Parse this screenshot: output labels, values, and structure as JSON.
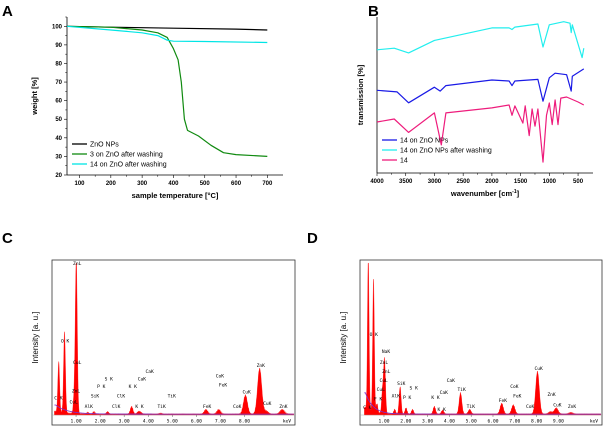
{
  "chart_data": [
    {
      "panel": "A",
      "type": "line",
      "xlabel": "sample temperature [°C]",
      "ylabel": "weight [%]",
      "xlim": [
        60,
        750
      ],
      "ylim": [
        20,
        105
      ],
      "xticks": [
        100,
        200,
        300,
        400,
        500,
        600,
        700
      ],
      "yticks": [
        20,
        30,
        40,
        50,
        60,
        70,
        80,
        90,
        100
      ],
      "legend": "bottom-left",
      "series": [
        {
          "name": "ZnO NPs",
          "color": "#000000",
          "x": [
            60,
            200,
            400,
            600,
            700
          ],
          "y": [
            100,
            99.5,
            99,
            98.5,
            98
          ]
        },
        {
          "name": "3 on ZnO after washing",
          "color": "#108a10",
          "x": [
            60,
            200,
            300,
            350,
            380,
            400,
            415,
            425,
            435,
            445,
            480,
            520,
            560,
            600,
            700
          ],
          "y": [
            100,
            99.5,
            98,
            96.5,
            94,
            88,
            82,
            70,
            50,
            44,
            41,
            36,
            32,
            31,
            30
          ]
        },
        {
          "name": "14 on ZnO after washing",
          "color": "#00e5e5",
          "x": [
            60,
            200,
            300,
            350,
            380,
            400,
            500,
            700
          ],
          "y": [
            100,
            98,
            96.5,
            95,
            92.5,
            92,
            91.8,
            91.3
          ]
        }
      ]
    },
    {
      "panel": "B",
      "type": "line",
      "xlabel": "wavenumber [cm",
      "xlabel_sup": "-1",
      "xlabel_end": "]",
      "ylabel": "transmission [%]",
      "xlim": [
        4000,
        240
      ],
      "ylim": [
        0,
        100
      ],
      "xticks": [
        4000,
        3500,
        3000,
        2500,
        2000,
        1500,
        1000,
        500
      ],
      "legend": "bottom-left",
      "series": [
        {
          "name": "14 on ZnO NPs",
          "color": "#1a1ae6",
          "x": [
            4000,
            3650,
            3450,
            3000,
            2900,
            2800,
            2000,
            1700,
            1650,
            1600,
            1200,
            1110,
            1000,
            900,
            700,
            620,
            600,
            400
          ],
          "y": [
            53,
            52,
            45,
            55,
            52.5,
            56,
            59.6,
            59,
            56,
            59,
            60,
            46,
            61,
            64,
            63,
            52.5,
            62,
            66.7
          ]
        },
        {
          "name": "14 on ZnO NPs after washing",
          "color": "#22eeee",
          "x": [
            4000,
            3700,
            3450,
            3000,
            2000,
            1700,
            1650,
            1600,
            1200,
            1110,
            1000,
            750,
            640,
            620,
            600,
            430,
            400
          ],
          "y": [
            79,
            80,
            77,
            85,
            93,
            93,
            92,
            93.5,
            95.5,
            80.8,
            95,
            97,
            96,
            90,
            95,
            74,
            80
          ]
        },
        {
          "name": "14",
          "color": "#ee1c7c",
          "x": [
            4000,
            3700,
            3450,
            3000,
            2880,
            2800,
            2000,
            1700,
            1650,
            1600,
            1460,
            1420,
            1350,
            1300,
            1250,
            1200,
            1110,
            1050,
            1000,
            950,
            900,
            850,
            800,
            700,
            500,
            400
          ],
          "y": [
            32.7,
            34.6,
            26,
            38.5,
            18,
            38.5,
            41.7,
            43.6,
            37,
            43,
            32,
            43,
            24,
            41,
            30,
            41,
            7,
            37,
            44.9,
            31,
            46.8,
            31,
            48,
            48.7,
            45.5,
            43.6
          ]
        }
      ]
    },
    {
      "panel": "C",
      "type": "area",
      "ylabel": "Intensity [a. u.]",
      "xunit": "keV",
      "xlim": [
        0,
        10.1
      ],
      "ylim": [
        0,
        100
      ],
      "xticks": [
        "1.00",
        "2.00",
        "3.00",
        "4.00",
        "5.00",
        "6.00",
        "7.00",
        "8.00"
      ],
      "fill_color": "#ff0000",
      "background_color": "#7a2fd0",
      "peaks": [
        [
          0.28,
          33
        ],
        [
          0.52,
          53
        ],
        [
          0.93,
          12
        ],
        [
          1.01,
          100
        ],
        [
          1.49,
          1
        ],
        [
          1.74,
          1.5
        ],
        [
          2.31,
          1.5
        ],
        [
          3.31,
          5
        ],
        [
          3.59,
          1.5
        ],
        [
          3.69,
          1
        ],
        [
          4.51,
          0.5
        ],
        [
          6.4,
          3
        ],
        [
          6.93,
          3
        ],
        [
          8.04,
          12.5
        ],
        [
          8.63,
          30
        ],
        [
          8.9,
          2
        ],
        [
          9.57,
          3
        ]
      ],
      "labels": [
        {
          "text": "C K",
          "e": 0.22
        },
        {
          "text": "O K",
          "e": 0.5
        },
        {
          "text": "ZnL",
          "e": 1.0
        },
        {
          "text": "CuL",
          "e": 1.0,
          "up": 33
        },
        {
          "text": "ZnL",
          "e": 0.95,
          "up": 14
        },
        {
          "text": "CuL",
          "e": 0.85,
          "up": 7
        },
        {
          "text": "AlK",
          "e": 1.48,
          "up": 4
        },
        {
          "text": "SiK",
          "e": 1.74,
          "up": 11
        },
        {
          "text": "P K",
          "e": 2.0,
          "up": 17
        },
        {
          "text": "S K",
          "e": 2.31,
          "up": 22
        },
        {
          "text": "ClK",
          "e": 2.62,
          "up": 4
        },
        {
          "text": "ClK",
          "e": 2.82,
          "up": 11
        },
        {
          "text": "K K",
          "e": 3.31,
          "up": 17
        },
        {
          "text": "K K",
          "e": 3.59,
          "up": 4
        },
        {
          "text": "CaK",
          "e": 3.69,
          "up": 22
        },
        {
          "text": "CaK",
          "e": 4.01,
          "up": 27
        },
        {
          "text": "TiK",
          "e": 4.51,
          "up": 4
        },
        {
          "text": "TiK",
          "e": 4.93,
          "up": 11
        },
        {
          "text": "FeK",
          "e": 6.4
        },
        {
          "text": "CoK",
          "e": 6.93,
          "up": 24
        },
        {
          "text": "FeK",
          "e": 7.06,
          "up": 18
        },
        {
          "text": "CoK",
          "e": 7.65,
          "up": 4
        },
        {
          "text": "CuK",
          "e": 8.04
        },
        {
          "text": "ZnK",
          "e": 8.63
        },
        {
          "text": "CuK",
          "e": 8.9,
          "up": 6
        },
        {
          "text": "ZnK",
          "e": 9.57
        }
      ]
    },
    {
      "panel": "D",
      "type": "area",
      "ylabel": "Intensity [a. u.]",
      "xunit": "keV",
      "xlim": [
        -0.1,
        11
      ],
      "ylim": [
        0,
        100
      ],
      "xticks": [
        "1.00",
        "2.00",
        "3.00",
        "4.00",
        "5.00",
        "6.00",
        "7.00",
        "8.00",
        "9.00"
      ],
      "fill_color": "#ff0000",
      "background_color": "#7a2fd0",
      "peaks": [
        [
          0.28,
          100
        ],
        [
          0.52,
          87
        ],
        [
          0.68,
          6
        ],
        [
          0.93,
          14
        ],
        [
          1.01,
          20
        ],
        [
          1.04,
          18
        ],
        [
          1.49,
          3
        ],
        [
          1.74,
          18
        ],
        [
          2.01,
          4
        ],
        [
          2.31,
          3
        ],
        [
          3.31,
          5
        ],
        [
          3.69,
          2.5
        ],
        [
          4.51,
          14
        ],
        [
          4.93,
          3
        ],
        [
          6.4,
          7
        ],
        [
          6.93,
          6
        ],
        [
          8.04,
          28
        ],
        [
          8.9,
          4
        ],
        [
          8.63,
          1.5
        ],
        [
          9.57,
          1
        ]
      ],
      "labels": [
        {
          "text": "C K",
          "e": 0.18
        },
        {
          "text": "O K",
          "e": 0.48
        },
        {
          "text": "NaK",
          "e": 1.04,
          "up": 40
        },
        {
          "text": "ZnL",
          "e": 0.95,
          "up": 33
        },
        {
          "text": "ZnL",
          "e": 1.05,
          "up": 27
        },
        {
          "text": "CuL",
          "e": 0.93,
          "up": 21
        },
        {
          "text": "CuL",
          "e": 0.8,
          "up": 15
        },
        {
          "text": "F K",
          "e": 0.68,
          "up": 9
        },
        {
          "text": "AlK",
          "e": 1.49,
          "up": 11
        },
        {
          "text": "SiK",
          "e": 1.74
        },
        {
          "text": "P K",
          "e": 2.01,
          "up": 10
        },
        {
          "text": "S K",
          "e": 2.31,
          "up": 16
        },
        {
          "text": "K K",
          "e": 3.31,
          "up": 10
        },
        {
          "text": "K K",
          "e": 3.59,
          "up": 2
        },
        {
          "text": "CaK",
          "e": 3.69,
          "up": 13
        },
        {
          "text": "CaK",
          "e": 4.01,
          "up": 21
        },
        {
          "text": "TiK",
          "e": 4.51
        },
        {
          "text": "TiK",
          "e": 4.93
        },
        {
          "text": "FeK",
          "e": 6.4
        },
        {
          "text": "CoK",
          "e": 6.93,
          "up": 17
        },
        {
          "text": "FeK",
          "e": 7.06,
          "up": 11
        },
        {
          "text": "CoK",
          "e": 7.65,
          "up": 4
        },
        {
          "text": "CuK",
          "e": 8.04
        },
        {
          "text": "ZnK",
          "e": 8.63,
          "up": 12
        },
        {
          "text": "CuK",
          "e": 8.9
        },
        {
          "text": "ZnK",
          "e": 9.57,
          "up": 4
        }
      ]
    }
  ]
}
